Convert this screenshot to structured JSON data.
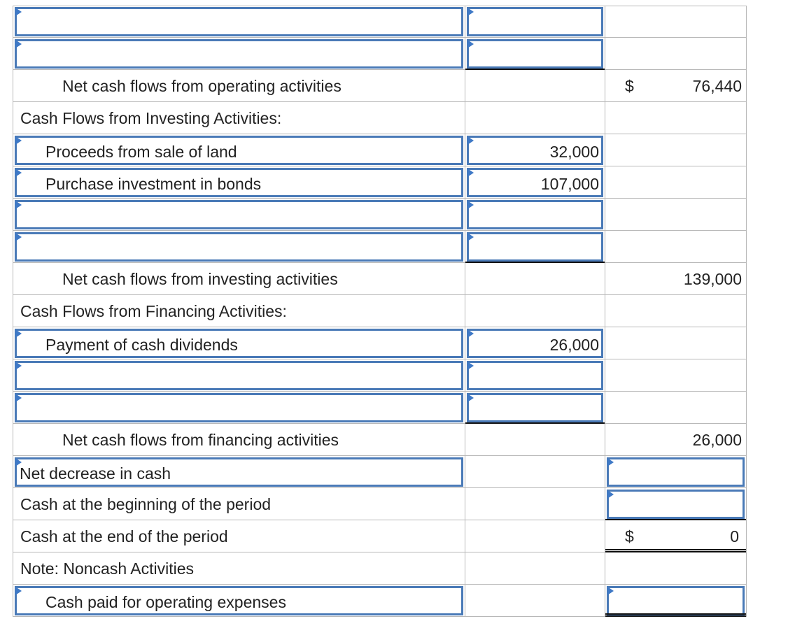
{
  "statement": {
    "rows": [
      {
        "label": ""
      },
      {
        "label": ""
      },
      {
        "label": "Net cash flows from operating activities",
        "col3": "76,440",
        "dollar": "$"
      },
      {
        "label": "Cash Flows from Investing Activities:"
      },
      {
        "label": "Proceeds from sale of land",
        "col2": "32,000"
      },
      {
        "label": "Purchase investment in bonds",
        "col2": "107,000"
      },
      {
        "label": ""
      },
      {
        "label": ""
      },
      {
        "label": "Net cash flows from investing activities",
        "col3": "139,000"
      },
      {
        "label": "Cash Flows from Financing Activities:"
      },
      {
        "label": "Payment of cash dividends",
        "col2": "26,000"
      },
      {
        "label": ""
      },
      {
        "label": ""
      },
      {
        "label": "Net cash flows from financing activities",
        "col3": "26,000"
      },
      {
        "label": "Net decrease in cash",
        "col3": ""
      },
      {
        "label": "Cash at the beginning of the period",
        "col3": ""
      },
      {
        "label": "Cash at the end of the period",
        "col3": "0",
        "dollar": "$"
      },
      {
        "label": "Note: Noncash Activities"
      },
      {
        "label": "Cash paid for operating expenses",
        "col3": ""
      }
    ]
  }
}
